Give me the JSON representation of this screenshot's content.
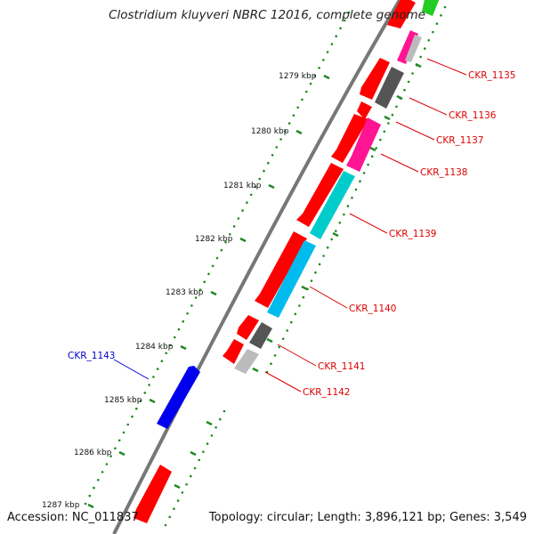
{
  "title": "Clostridium kluyveri NBRC 12016, complete genome",
  "accession": "Accession: NC_011837",
  "summary": "Topology: circular; Length: 3,896,121 bp; Genes: 3,549",
  "colors": {
    "forward_gene": "#ff0000",
    "backbone": "#777777",
    "kbp_tick": "#228822",
    "dots": "#228822",
    "label_forward": "#dd0000",
    "label_reverse": "#0000cc",
    "highlight_green": "#22cc22",
    "magenta": "#ff1493",
    "dark_gray": "#555555",
    "light_gray": "#bbbbbb",
    "cyan": "#00cccc",
    "sky": "#00bbee",
    "blue": "#0000ee"
  },
  "kbp_ticks": [
    "1279 kbp",
    "1280 kbp",
    "1281 kbp",
    "1282 kbp",
    "1283 kbp",
    "1284 kbp",
    "1285 kbp",
    "1286 kbp",
    "1287 kbp"
  ],
  "gene_labels": [
    {
      "id": "CKR_1135",
      "strand": "forward"
    },
    {
      "id": "CKR_1136",
      "strand": "forward"
    },
    {
      "id": "CKR_1137",
      "strand": "forward"
    },
    {
      "id": "CKR_1138",
      "strand": "forward"
    },
    {
      "id": "CKR_1139",
      "strand": "forward"
    },
    {
      "id": "CKR_1140",
      "strand": "forward"
    },
    {
      "id": "CKR_1141",
      "strand": "forward"
    },
    {
      "id": "CKR_1142",
      "strand": "forward"
    },
    {
      "id": "CKR_1143",
      "strand": "reverse"
    }
  ]
}
